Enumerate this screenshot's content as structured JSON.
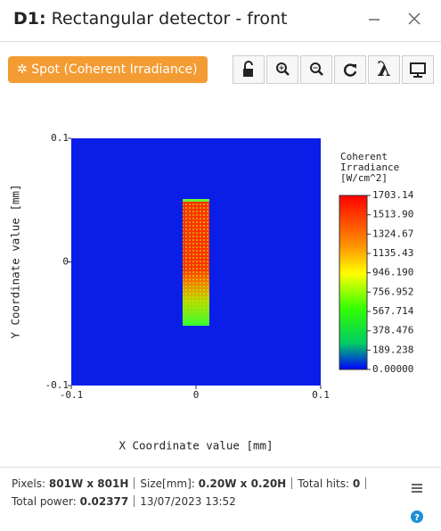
{
  "window": {
    "title_prefix": "D1:",
    "title": "Rectangular detector - front"
  },
  "toolbar": {
    "spot_button": "Spot (Coherent Irradiance)"
  },
  "plot": {
    "x_label": "X Coordinate value [mm]",
    "y_label": "Y Coordinate value [mm]",
    "xlim": [
      -0.1,
      0.1
    ],
    "ylim": [
      -0.1,
      0.1
    ],
    "xticks": [
      -0.1,
      0,
      0.1
    ],
    "yticks": [
      -0.1,
      0,
      0.1
    ],
    "colorbar": {
      "title": [
        "Coherent",
        "Irradiance",
        "[W/cm^2]"
      ],
      "lim": [
        0,
        1703.14
      ],
      "ticks": [
        1703.14,
        {
          "value": 1513.9,
          "label": "1513.90"
        },
        1324.67,
        1135.43,
        {
          "value": 946.19,
          "label": "946.190"
        },
        756.952,
        567.714,
        378.476,
        189.238,
        {
          "value": 0,
          "label": "0.00000"
        }
      ]
    }
  },
  "status": {
    "pixels_label": "Pixels:",
    "pixels": "801W x 801H",
    "size_label": "Size[mm]:",
    "size": "0.20W x 0.20H",
    "hits_label": "Total hits:",
    "hits": 0,
    "power_label": "Total power:",
    "power": "0.02377",
    "timestamp": "13/07/2023 13:52"
  }
}
